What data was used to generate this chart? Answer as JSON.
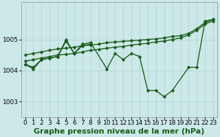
{
  "background_color": "#cce8e8",
  "grid_color": "#aad0d0",
  "line_color": "#1a5c1a",
  "title": "Graphe pression niveau de la mer (hPa)",
  "xlim": [
    -0.5,
    23.5
  ],
  "ylim": [
    1002.5,
    1006.2
  ],
  "yticks": [
    1003,
    1004,
    1005
  ],
  "xticks": [
    0,
    1,
    2,
    3,
    4,
    5,
    6,
    7,
    8,
    9,
    10,
    11,
    12,
    13,
    14,
    15,
    16,
    17,
    18,
    19,
    20,
    21,
    22,
    23
  ],
  "series": [
    {
      "x": [
        0,
        1,
        2,
        3,
        4,
        5,
        6,
        7,
        8,
        10,
        11,
        12,
        13,
        14,
        15,
        16,
        17,
        18,
        20,
        21,
        22,
        23
      ],
      "y": [
        1004.2,
        1004.05,
        1004.35,
        1004.4,
        1004.45,
        1005.0,
        1004.55,
        1004.85,
        1004.9,
        1004.05,
        1004.55,
        1004.35,
        1004.55,
        1004.45,
        1003.35,
        1003.35,
        1003.15,
        1003.35,
        1004.1,
        1004.1,
        1005.6,
        1005.65
      ]
    },
    {
      "x": [
        0,
        1,
        2,
        3,
        4,
        5,
        6,
        7,
        8,
        9,
        10,
        11,
        12,
        13,
        14,
        15,
        16,
        17,
        18,
        19,
        20,
        21,
        22,
        23
      ],
      "y": [
        1004.5,
        1004.55,
        1004.6,
        1004.65,
        1004.7,
        1004.72,
        1004.75,
        1004.8,
        1004.82,
        1004.85,
        1004.9,
        1004.92,
        1004.94,
        1004.96,
        1004.98,
        1005.0,
        1005.02,
        1005.05,
        1005.1,
        1005.12,
        1005.2,
        1005.35,
        1005.55,
        1005.65
      ]
    },
    {
      "x": [
        0,
        1,
        2,
        3,
        4,
        5,
        6,
        7,
        8,
        9,
        10,
        11,
        12,
        13,
        14,
        15,
        16,
        17,
        18,
        19,
        20,
        21,
        22,
        23
      ],
      "y": [
        1004.3,
        1004.35,
        1004.4,
        1004.45,
        1004.5,
        1004.52,
        1004.55,
        1004.6,
        1004.65,
        1004.68,
        1004.72,
        1004.75,
        1004.78,
        1004.82,
        1004.85,
        1004.88,
        1004.92,
        1004.95,
        1005.0,
        1005.05,
        1005.15,
        1005.3,
        1005.5,
        1005.6
      ]
    },
    {
      "x": [
        0,
        1,
        2,
        3,
        4,
        5,
        6,
        7,
        8
      ],
      "y": [
        1004.2,
        1004.1,
        1004.35,
        1004.4,
        1004.45,
        1004.95,
        1004.55,
        1004.8,
        1004.85
      ]
    }
  ],
  "title_fontsize": 8,
  "tick_fontsize": 6.5
}
